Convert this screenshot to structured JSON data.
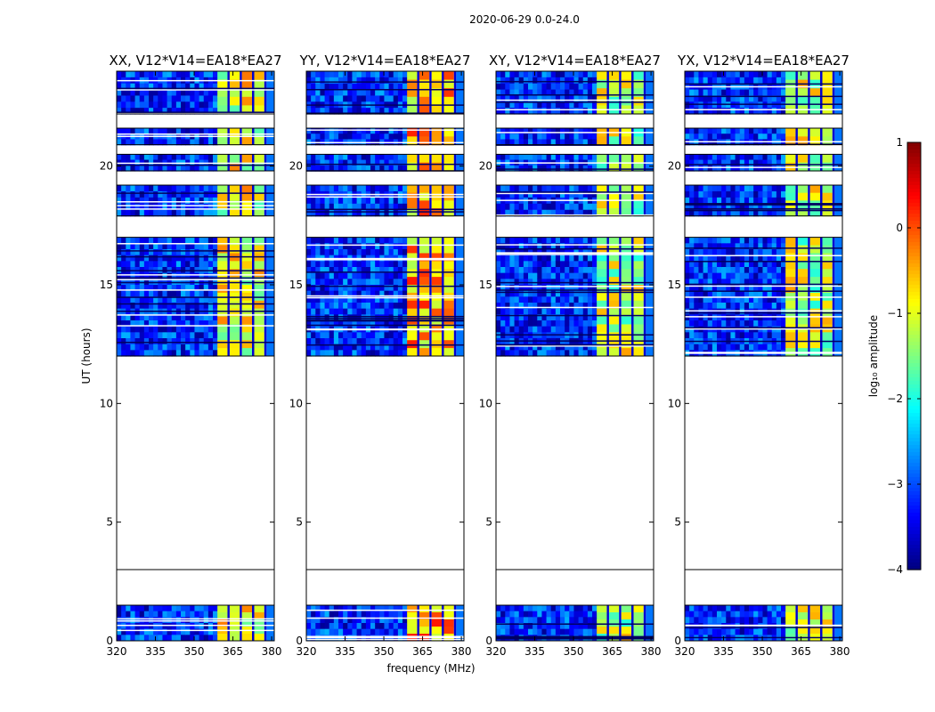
{
  "figure": {
    "suptitle": "2020-06-29 0.0-24.0",
    "xlabel": "frequency (MHz)",
    "ylabel": "UT (hours)",
    "colorbar_label": "log₁₀ amplitude"
  },
  "chart_data": {
    "type": "heatmap",
    "title": "2020-06-29 0.0-24.0",
    "xlabel": "frequency (MHz)",
    "ylabel": "UT (hours)",
    "xlim": [
      320,
      381
    ],
    "ylim": [
      0,
      24
    ],
    "xticks": [
      320,
      335,
      350,
      365,
      380
    ],
    "yticks": [
      0,
      5,
      10,
      15,
      20
    ],
    "colorbar": {
      "label": "log₁₀ amplitude",
      "range": [
        -4,
        1
      ],
      "ticks": [
        -4,
        -3,
        -2,
        -1,
        0,
        1
      ],
      "colormap": "jet"
    },
    "panels": [
      {
        "title": "XX, V12*V14=EA18*EA27",
        "polarization": "XX",
        "in_band_level": -1.0
      },
      {
        "title": "YY, V12*V14=EA18*EA27",
        "polarization": "YY",
        "in_band_level": -0.5
      },
      {
        "title": "XY, V12*V14=EA18*EA27",
        "polarization": "XY",
        "in_band_level": -1.2
      },
      {
        "title": "YX, V12*V14=EA18*EA27",
        "polarization": "YX",
        "in_band_level": -1.2
      }
    ],
    "bright_band_mhz": [
      359,
      378
    ],
    "background_level": -3.2,
    "data_ut_ranges": [
      [
        0,
        1.5
      ],
      [
        12.0,
        17.0
      ],
      [
        17.9,
        19.2
      ],
      [
        19.8,
        20.5
      ],
      [
        20.9,
        21.6
      ],
      [
        22.2,
        24.0
      ]
    ],
    "gap_line_ut": 3.0
  }
}
